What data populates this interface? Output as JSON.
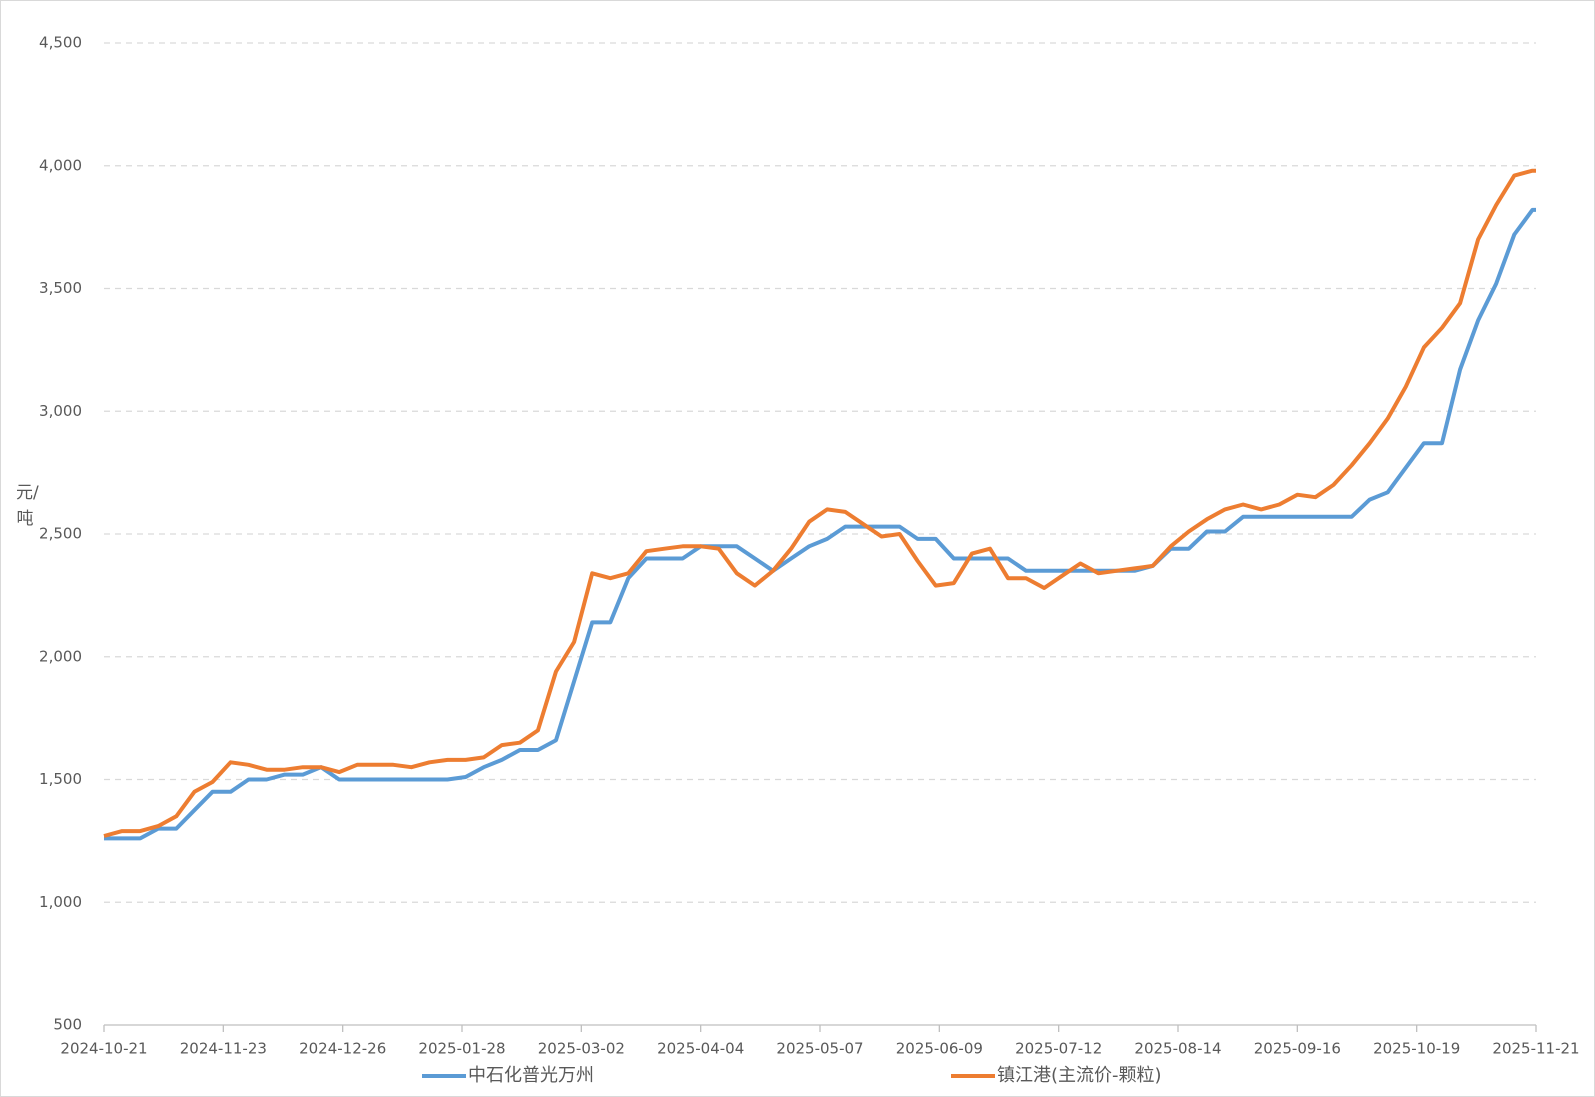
{
  "chart_data": {
    "type": "line",
    "y_label": "元/吨",
    "x": [
      "2024-10-21",
      "2024-10-26",
      "2024-10-31",
      "2024-11-05",
      "2024-11-10",
      "2024-11-15",
      "2024-11-20",
      "2024-11-25",
      "2024-11-30",
      "2024-12-05",
      "2024-12-10",
      "2024-12-15",
      "2024-12-20",
      "2024-12-25",
      "2024-12-30",
      "2025-01-04",
      "2025-01-09",
      "2025-01-14",
      "2025-01-19",
      "2025-01-24",
      "2025-01-29",
      "2025-02-03",
      "2025-02-08",
      "2025-02-13",
      "2025-02-18",
      "2025-02-23",
      "2025-02-28",
      "2025-03-05",
      "2025-03-10",
      "2025-03-15",
      "2025-03-20",
      "2025-03-25",
      "2025-03-30",
      "2025-04-04",
      "2025-04-09",
      "2025-04-14",
      "2025-04-19",
      "2025-04-24",
      "2025-04-29",
      "2025-05-04",
      "2025-05-09",
      "2025-05-14",
      "2025-05-19",
      "2025-05-24",
      "2025-05-29",
      "2025-06-03",
      "2025-06-08",
      "2025-06-13",
      "2025-06-18",
      "2025-06-23",
      "2025-06-28",
      "2025-07-03",
      "2025-07-08",
      "2025-07-13",
      "2025-07-18",
      "2025-07-23",
      "2025-07-28",
      "2025-08-02",
      "2025-08-07",
      "2025-08-12",
      "2025-08-17",
      "2025-08-22",
      "2025-08-27",
      "2025-09-01",
      "2025-09-06",
      "2025-09-11",
      "2025-09-16",
      "2025-09-21",
      "2025-09-26",
      "2025-10-01",
      "2025-10-06",
      "2025-10-11",
      "2025-10-16",
      "2025-10-21",
      "2025-10-26",
      "2025-10-31",
      "2025-11-05",
      "2025-11-10",
      "2025-11-15",
      "2025-11-20",
      "2025-11-21"
    ],
    "series": [
      {
        "name": "中石化普光万州",
        "color": "#5b9bd5",
        "values": [
          1260,
          1260,
          1260,
          1300,
          1300,
          1375,
          1450,
          1450,
          1500,
          1500,
          1520,
          1520,
          1550,
          1500,
          1500,
          1500,
          1500,
          1500,
          1500,
          1500,
          1510,
          1550,
          1580,
          1620,
          1620,
          1660,
          1900,
          2140,
          2140,
          2320,
          2400,
          2400,
          2400,
          2450,
          2450,
          2450,
          2400,
          2350,
          2400,
          2450,
          2480,
          2530,
          2530,
          2530,
          2530,
          2480,
          2480,
          2400,
          2400,
          2400,
          2400,
          2350,
          2350,
          2350,
          2350,
          2350,
          2350,
          2350,
          2370,
          2440,
          2440,
          2510,
          2510,
          2570,
          2570,
          2570,
          2570,
          2570,
          2570,
          2570,
          2640,
          2670,
          2770,
          2870,
          2870,
          3170,
          3370,
          3520,
          3720,
          3820,
          3820
        ]
      },
      {
        "name": "镇江港(主流价-颗粒)",
        "color": "#ed7d31",
        "values": [
          1270,
          1290,
          1290,
          1310,
          1350,
          1450,
          1490,
          1570,
          1560,
          1540,
          1540,
          1550,
          1550,
          1530,
          1560,
          1560,
          1560,
          1550,
          1570,
          1580,
          1580,
          1590,
          1640,
          1650,
          1700,
          1940,
          2060,
          2340,
          2320,
          2340,
          2430,
          2440,
          2450,
          2450,
          2440,
          2340,
          2290,
          2350,
          2440,
          2550,
          2600,
          2590,
          2540,
          2490,
          2500,
          2390,
          2290,
          2300,
          2420,
          2440,
          2320,
          2320,
          2280,
          2330,
          2380,
          2340,
          2350,
          2360,
          2370,
          2450,
          2510,
          2560,
          2600,
          2620,
          2600,
          2620,
          2660,
          2650,
          2700,
          2780,
          2870,
          2970,
          3100,
          3260,
          3340,
          3440,
          3700,
          3840,
          3960,
          3980,
          3980
        ]
      }
    ],
    "xlim": [
      "2024-10-21",
      "2025-11-21"
    ],
    "xticks": [
      "2024-10-21",
      "2024-11-23",
      "2024-12-26",
      "2025-01-28",
      "2025-03-02",
      "2025-04-04",
      "2025-05-07",
      "2025-06-09",
      "2025-07-12",
      "2025-08-14",
      "2025-09-16",
      "2025-10-19",
      "2025-11-21"
    ],
    "ylim": [
      500,
      4500
    ],
    "yticks": [
      500,
      {
        "value": 1000,
        "label": "1,000"
      },
      {
        "value": 1500,
        "label": "1,500"
      },
      {
        "value": 2000,
        "label": "2,000"
      },
      {
        "value": 2500,
        "label": "2,500"
      },
      {
        "value": 3000,
        "label": "3,000"
      },
      {
        "value": 3500,
        "label": "3,500"
      },
      {
        "value": 4000,
        "label": "4,000"
      },
      {
        "value": 4500,
        "label": "4,500"
      }
    ],
    "grid": true
  }
}
